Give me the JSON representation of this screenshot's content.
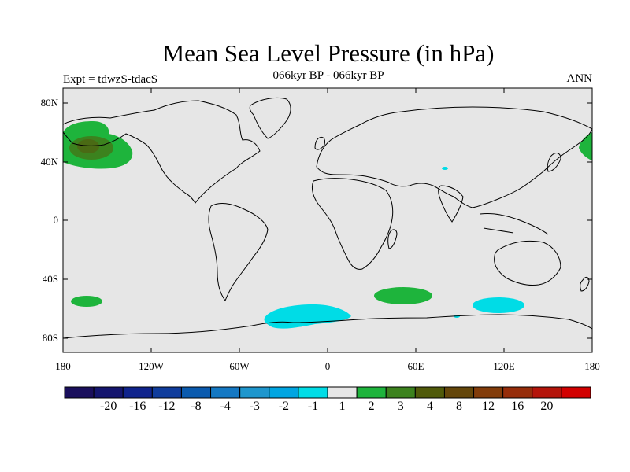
{
  "title": "Mean Sea Level Pressure (in hPa)",
  "subtitle": "066kyr BP - 066kyr BP",
  "left_label": "Expt = tdwzS-tdacS",
  "right_label": "ANN",
  "lat_labels": [
    "80N",
    "40N",
    "0",
    "40S",
    "80S"
  ],
  "lon_labels": [
    "180",
    "120W",
    "60W",
    "0",
    "60E",
    "120E",
    "180"
  ],
  "colorbar": {
    "colors": [
      "#1a0f5c",
      "#14156e",
      "#0f238c",
      "#0f3c9c",
      "#0a5aae",
      "#1478c3",
      "#1e96cd",
      "#00a5e1",
      "#00dce6",
      "#e6e6e6",
      "#1eb43c",
      "#3c821e",
      "#505a0a",
      "#64460a",
      "#823c0a",
      "#962d0a",
      "#b4140a",
      "#d20000"
    ],
    "labels": [
      "-20",
      "-16",
      "-12",
      "-8",
      "-4",
      "-3",
      "-2",
      "-1",
      "1",
      "2",
      "3",
      "4",
      "8",
      "12",
      "16",
      "20"
    ]
  },
  "palette": {
    "background": "#e6e6e6",
    "positive_light": "#1eb43c",
    "positive_mid": "#3c821e",
    "positive_dark": "#64460a",
    "negative": "#00dce6"
  }
}
